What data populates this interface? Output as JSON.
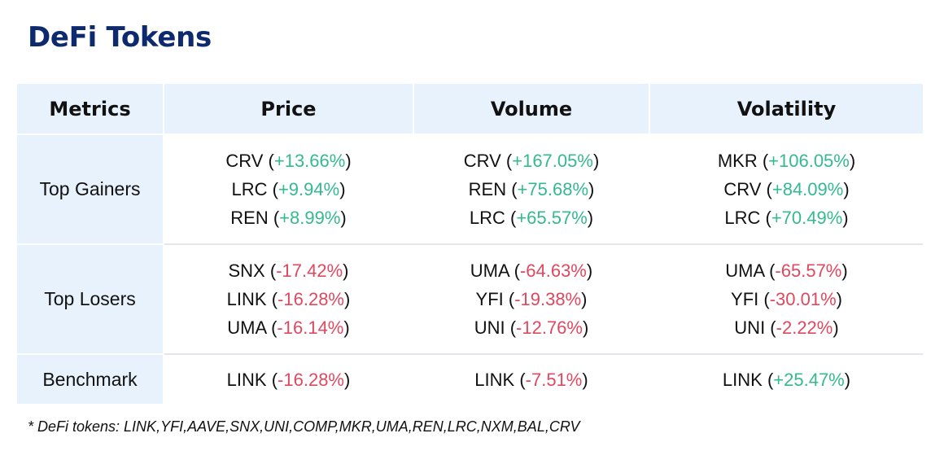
{
  "title": "DeFi Tokens",
  "colors": {
    "title": "#0d2a6e",
    "header_bg": "#e8f2fc",
    "positive": "#35b98f",
    "negative": "#e0485f"
  },
  "table": {
    "headers": [
      "Metrics",
      "Price",
      "Volume",
      "Volatility"
    ],
    "rows": [
      {
        "label": "Top Gainers",
        "price": [
          {
            "token": "CRV",
            "change": "+13.66%"
          },
          {
            "token": "LRC",
            "change": "+9.94%"
          },
          {
            "token": "REN",
            "change": "+8.99%"
          }
        ],
        "volume": [
          {
            "token": "CRV",
            "change": "+167.05%"
          },
          {
            "token": "REN",
            "change": "+75.68%"
          },
          {
            "token": "LRC",
            "change": "+65.57%"
          }
        ],
        "volatility": [
          {
            "token": "MKR",
            "change": "+106.05%"
          },
          {
            "token": "CRV",
            "change": "+84.09%"
          },
          {
            "token": "LRC",
            "change": "+70.49%"
          }
        ]
      },
      {
        "label": "Top Losers",
        "price": [
          {
            "token": "SNX",
            "change": "-17.42%"
          },
          {
            "token": "LINK",
            "change": "-16.28%"
          },
          {
            "token": "UMA",
            "change": "-16.14%"
          }
        ],
        "volume": [
          {
            "token": "UMA",
            "change": "-64.63%"
          },
          {
            "token": "YFI",
            "change": "-19.38%"
          },
          {
            "token": "UNI",
            "change": "-12.76%"
          }
        ],
        "volatility": [
          {
            "token": "UMA",
            "change": "-65.57%"
          },
          {
            "token": "YFI",
            "change": "-30.01%"
          },
          {
            "token": "UNI",
            "change": "-2.22%"
          }
        ]
      },
      {
        "label": "Benchmark",
        "price": [
          {
            "token": "LINK",
            "change": "-16.28%"
          }
        ],
        "volume": [
          {
            "token": "LINK",
            "change": "-7.51%"
          }
        ],
        "volatility": [
          {
            "token": "LINK",
            "change": "+25.47%"
          }
        ]
      }
    ]
  },
  "footnote": "* DeFi tokens: LINK,YFI,AAVE,SNX,UNI,COMP,MKR,UMA,REN,LRC,NXM,BAL,CRV"
}
